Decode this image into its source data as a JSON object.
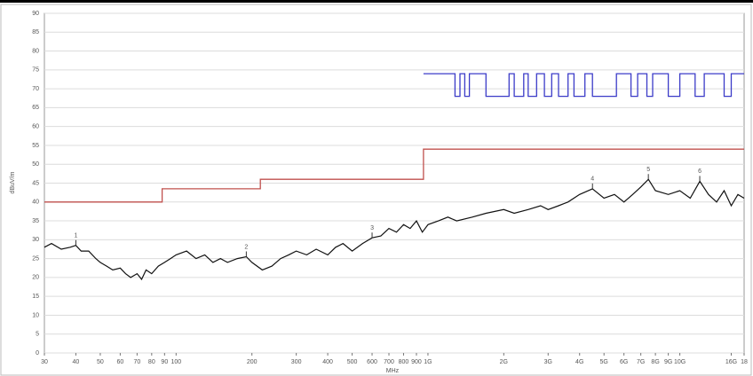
{
  "chart_data": {
    "type": "line",
    "xlabel": "MHz",
    "ylabel": "dBuV/m",
    "xscale": "log",
    "grid": true,
    "xlim": [
      30,
      18000
    ],
    "ylim": [
      0,
      90
    ],
    "yticks": [
      0,
      5,
      10,
      15,
      20,
      25,
      30,
      35,
      40,
      45,
      50,
      55,
      60,
      65,
      70,
      75,
      80,
      85,
      90
    ],
    "xticks": [
      30,
      40,
      50,
      60,
      70,
      80,
      90,
      100,
      200,
      300,
      400,
      500,
      600,
      700,
      800,
      900,
      {
        "value": 1000,
        "label": "1G"
      },
      {
        "value": 2000,
        "label": "2G"
      },
      {
        "value": 3000,
        "label": "3G"
      },
      {
        "value": 4000,
        "label": "4G"
      },
      {
        "value": 5000,
        "label": "5G"
      },
      {
        "value": 6000,
        "label": "6G"
      },
      {
        "value": 7000,
        "label": "7G"
      },
      {
        "value": 8000,
        "label": "8G"
      },
      {
        "value": 9000,
        "label": "9G"
      },
      {
        "value": 10000,
        "label": "10G"
      },
      {
        "value": 16000,
        "label": "16G"
      },
      {
        "value": 18000,
        "label": "18"
      }
    ],
    "series": [
      {
        "color": "#c0504d",
        "x": [
          30,
          88,
          88,
          216,
          216,
          960,
          960,
          18000
        ],
        "values": [
          40,
          40,
          43.5,
          43.5,
          46,
          46,
          54,
          54
        ]
      },
      {
        "color": "#3b3bc8",
        "x": [
          960,
          1280,
          1280,
          1340,
          1340,
          1400,
          1400,
          1460,
          1460,
          1700,
          1700,
          2100,
          2100,
          2200,
          2200,
          2400,
          2400,
          2500,
          2500,
          2700,
          2700,
          2900,
          2900,
          3100,
          3100,
          3300,
          3300,
          3600,
          3600,
          3800,
          3800,
          4200,
          4200,
          4500,
          4500,
          5600,
          5600,
          6400,
          6400,
          6800,
          6800,
          7400,
          7400,
          7800,
          7800,
          9000,
          9000,
          10000,
          10000,
          11500,
          11500,
          12500,
          12500,
          15000,
          15000,
          16000,
          16000,
          18000
        ],
        "values": [
          74,
          74,
          68,
          68,
          74,
          74,
          68,
          68,
          74,
          74,
          68,
          68,
          74,
          74,
          68,
          68,
          74,
          74,
          68,
          68,
          74,
          74,
          68,
          68,
          74,
          74,
          68,
          68,
          74,
          74,
          68,
          68,
          74,
          74,
          68,
          68,
          74,
          74,
          68,
          68,
          74,
          74,
          68,
          68,
          74,
          74,
          68,
          68,
          74,
          74,
          68,
          68,
          74,
          74,
          68,
          68,
          74,
          74
        ]
      },
      {
        "color": "#111111",
        "x": [
          30,
          32,
          35,
          38,
          40,
          42,
          45,
          48,
          50,
          53,
          56,
          60,
          63,
          66,
          70,
          73,
          76,
          80,
          85,
          90,
          95,
          100,
          110,
          120,
          130,
          140,
          150,
          160,
          175,
          190,
          200,
          220,
          240,
          260,
          280,
          300,
          330,
          360,
          400,
          430,
          460,
          500,
          550,
          600,
          650,
          700,
          750,
          800,
          850,
          900,
          950,
          1000,
          1100,
          1200,
          1300,
          1500,
          1700,
          2000,
          2200,
          2500,
          2800,
          3000,
          3300,
          3600,
          4000,
          4500,
          5000,
          5500,
          6000,
          6500,
          7000,
          7500,
          8000,
          9000,
          10000,
          11000,
          12000,
          13000,
          14000,
          15000,
          16000,
          17000,
          18000
        ],
        "values": [
          28,
          29,
          27.5,
          28,
          28.5,
          27,
          27,
          25,
          24,
          23,
          22,
          22.5,
          21,
          20,
          21,
          19.5,
          22,
          21,
          23,
          24,
          25,
          26,
          27,
          25,
          26,
          24,
          25,
          24,
          25,
          25.5,
          24,
          22,
          23,
          25,
          26,
          27,
          26,
          27.5,
          26,
          28,
          29,
          27,
          29,
          30.5,
          31,
          33,
          32,
          34,
          33,
          35,
          32,
          34,
          35,
          36,
          35,
          36,
          37,
          38,
          37,
          38,
          39,
          38,
          39,
          40,
          42,
          43.5,
          41,
          42,
          40,
          42,
          44,
          46,
          43,
          42,
          43,
          41,
          45.5,
          42,
          40,
          43,
          39,
          42,
          41
        ]
      }
    ],
    "markers": [
      {
        "label": "1",
        "x": 40,
        "y": 28.5
      },
      {
        "label": "2",
        "x": 190,
        "y": 25.5
      },
      {
        "label": "3",
        "x": 600,
        "y": 30.5
      },
      {
        "label": "4",
        "x": 4500,
        "y": 43.5
      },
      {
        "label": "5",
        "x": 7500,
        "y": 46
      },
      {
        "label": "6",
        "x": 12000,
        "y": 45.5
      }
    ]
  }
}
